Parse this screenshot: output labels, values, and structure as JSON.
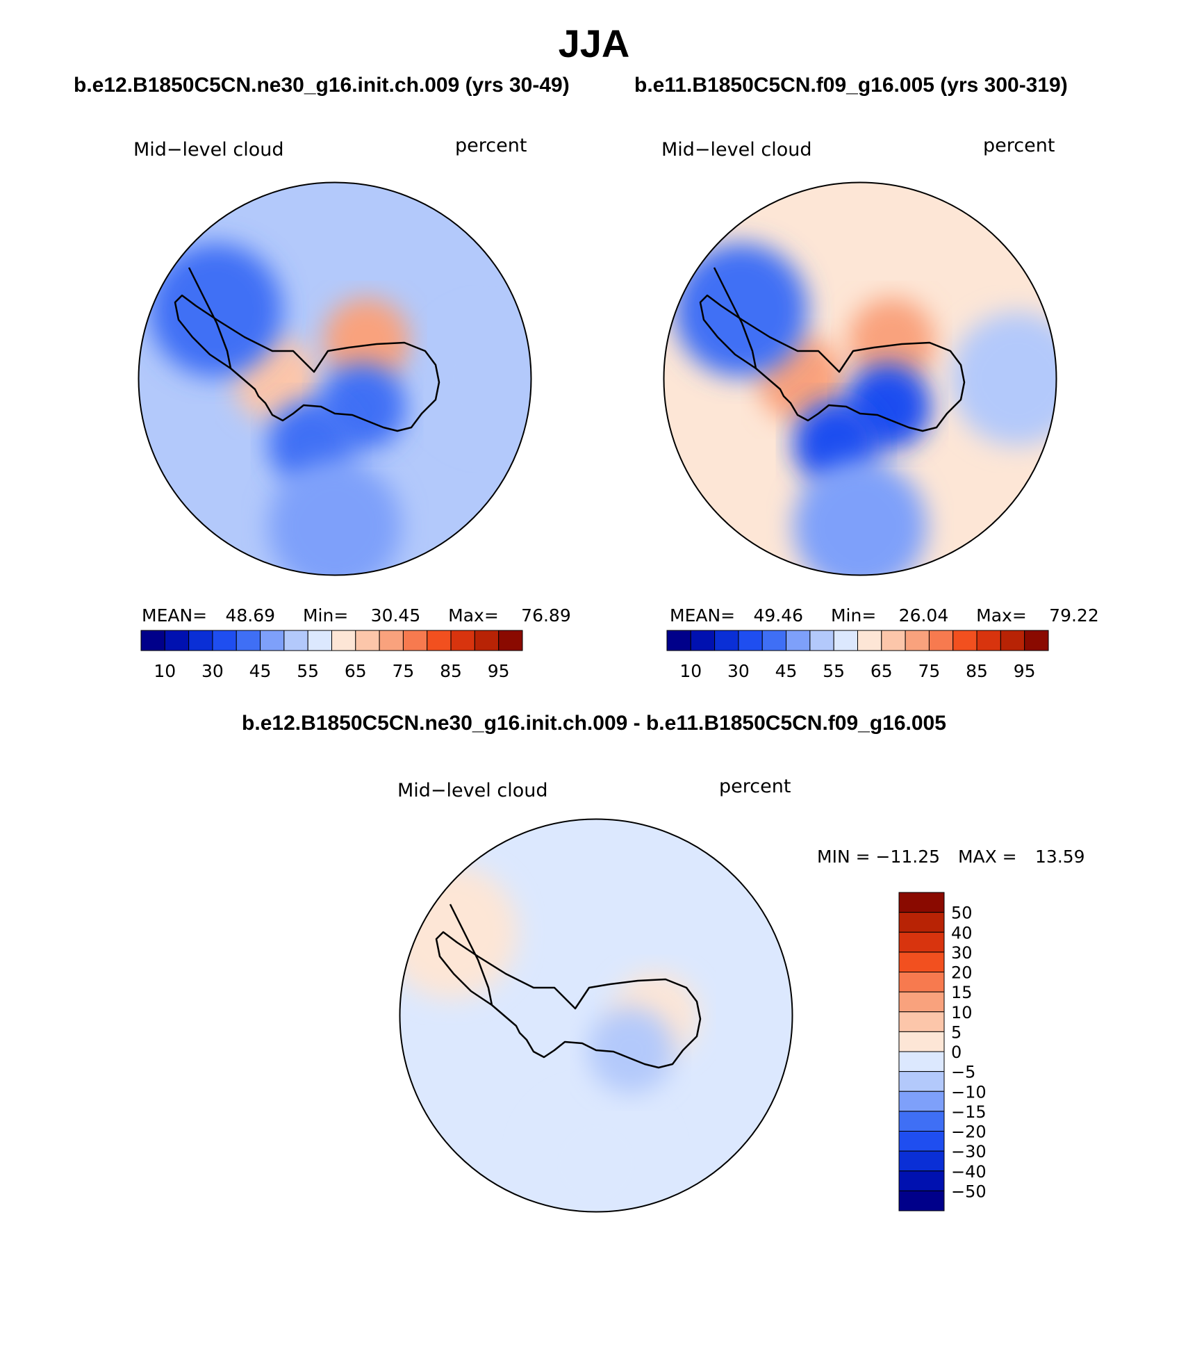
{
  "title": "JJA",
  "case_left": "b.e12.B1850C5CN.ne30_g16.init.ch.009 (yrs 30-49)",
  "case_right": "b.e11.B1850C5CN.f09_g16.005 (yrs 300-319)",
  "diff_title": "b.e12.B1850C5CN.ne30_g16.init.ch.009 - b.e11.B1850C5CN.f09_g16.005",
  "colors": {
    "abs": [
      "#00008a",
      "#0011b0",
      "#0a2fd6",
      "#1f4ef0",
      "#3f6ff5",
      "#7ea0fa",
      "#b3c9fb",
      "#dce8fe",
      "#fde6d6",
      "#fcc6aa",
      "#f9a27d",
      "#f77a4f",
      "#f2501f",
      "#d8340e",
      "#b82305",
      "#8a0a00"
    ],
    "diff": [
      "#00008a",
      "#0011b0",
      "#0a2fd6",
      "#1f4ef0",
      "#3f6ff5",
      "#7ea0fa",
      "#b3c9fb",
      "#dce8fe",
      "#fde6d6",
      "#fcc6aa",
      "#f9a27d",
      "#f77a4f",
      "#f2501f",
      "#d8340e",
      "#b82305",
      "#8a0a00"
    ]
  },
  "chart_data": [
    {
      "type": "heatmap",
      "projection": "south-polar-stereographic",
      "variable": "Mid−level cloud",
      "units": "percent",
      "stats": {
        "mean_label": "MEAN=",
        "mean": "48.69",
        "min_label": "Min=",
        "min": "30.45",
        "max_label": "Max=",
        "max": "76.89"
      },
      "colorbar_labels": [
        "10",
        "30",
        "45",
        "55",
        "65",
        "75",
        "85",
        "95"
      ],
      "regions": [
        {
          "lon": 0,
          "colat": 0,
          "value": 50
        },
        {
          "lon": 40,
          "colat": 10,
          "value": 70
        },
        {
          "lon": 270,
          "colat": 12,
          "value": 68
        },
        {
          "lon": 135,
          "colat": 8,
          "value": 42
        },
        {
          "lon": 200,
          "colat": 14,
          "value": 40
        },
        {
          "lon": 300,
          "colat": 28,
          "value": 42
        },
        {
          "lon": 180,
          "colat": 30,
          "value": 46
        },
        {
          "lon": 90,
          "colat": 32,
          "value": 52
        }
      ]
    },
    {
      "type": "heatmap",
      "projection": "south-polar-stereographic",
      "variable": "Mid−level cloud",
      "units": "percent",
      "stats": {
        "mean_label": "MEAN=",
        "mean": "49.46",
        "min_label": "Min=",
        "min": "26.04",
        "max_label": "Max=",
        "max": "79.22"
      },
      "colorbar_labels": [
        "10",
        "30",
        "45",
        "55",
        "65",
        "75",
        "85",
        "95"
      ],
      "regions": [
        {
          "lon": 0,
          "colat": 0,
          "value": 62
        },
        {
          "lon": 40,
          "colat": 10,
          "value": 72
        },
        {
          "lon": 270,
          "colat": 12,
          "value": 72
        },
        {
          "lon": 135,
          "colat": 8,
          "value": 38
        },
        {
          "lon": 200,
          "colat": 14,
          "value": 38
        },
        {
          "lon": 300,
          "colat": 28,
          "value": 40
        },
        {
          "lon": 180,
          "colat": 30,
          "value": 48
        },
        {
          "lon": 90,
          "colat": 32,
          "value": 54
        }
      ]
    },
    {
      "type": "heatmap",
      "projection": "south-polar-stereographic",
      "variable": "Mid−level cloud",
      "units": "percent",
      "stats": {
        "min_label": "MIN =",
        "min": "−11.25",
        "max_label": "MAX =",
        "max": "13.59"
      },
      "colorbar_labels": [
        "50",
        "40",
        "30",
        "20",
        "15",
        "10",
        "5",
        "0",
        "−5",
        "−10",
        "−15",
        "−20",
        "−30",
        "−40",
        "−50"
      ],
      "regions": [
        {
          "lon": 0,
          "colat": 0,
          "value": -4
        },
        {
          "lon": 90,
          "colat": 12,
          "value": 3
        },
        {
          "lon": 300,
          "colat": 34,
          "value": 2
        },
        {
          "lon": 180,
          "colat": 30,
          "value": -2
        },
        {
          "lon": 135,
          "colat": 10,
          "value": -6
        }
      ]
    }
  ]
}
